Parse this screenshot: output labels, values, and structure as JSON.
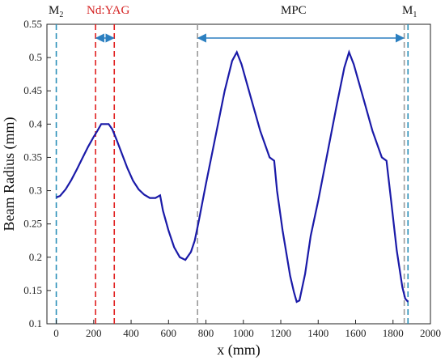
{
  "chart_data": {
    "type": "line",
    "title": "",
    "xlabel": "x (mm)",
    "ylabel": "Beam Radius (mm)",
    "xlim": [
      -50,
      2000
    ],
    "ylim": [
      0.1,
      0.55
    ],
    "x_ticks": [
      "0",
      "200",
      "400",
      "600",
      "800",
      "1000",
      "1200",
      "1400",
      "1600",
      "1800",
      "2000"
    ],
    "y_ticks": [
      "0.1",
      "0.15",
      "0.2",
      "0.25",
      "0.3",
      "0.35",
      "0.4",
      "0.45",
      "0.5",
      "0.55"
    ],
    "grid": false,
    "series": [
      {
        "color": "#1a1aa8",
        "x": [
          0,
          20,
          50,
          80,
          110,
          140,
          170,
          200,
          220,
          240,
          280,
          300,
          320,
          350,
          380,
          410,
          440,
          470,
          500,
          530,
          555,
          570,
          600,
          630,
          660,
          690,
          720,
          740,
          760,
          800,
          850,
          900,
          940,
          965,
          990,
          1040,
          1090,
          1140,
          1165,
          1180,
          1210,
          1250,
          1270,
          1285,
          1300,
          1330,
          1360,
          1400,
          1450,
          1500,
          1540,
          1565,
          1590,
          1640,
          1690,
          1740,
          1765,
          1790,
          1820,
          1850,
          1865,
          1880
        ],
        "y": [
          0.29,
          0.292,
          0.302,
          0.316,
          0.332,
          0.349,
          0.366,
          0.381,
          0.39,
          0.4,
          0.4,
          0.392,
          0.378,
          0.356,
          0.334,
          0.315,
          0.302,
          0.294,
          0.289,
          0.289,
          0.293,
          0.27,
          0.24,
          0.215,
          0.2,
          0.196,
          0.208,
          0.225,
          0.252,
          0.31,
          0.38,
          0.45,
          0.495,
          0.508,
          0.49,
          0.44,
          0.39,
          0.35,
          0.345,
          0.3,
          0.24,
          0.172,
          0.148,
          0.133,
          0.135,
          0.175,
          0.232,
          0.285,
          0.357,
          0.43,
          0.485,
          0.508,
          0.49,
          0.44,
          0.39,
          0.35,
          0.345,
          0.285,
          0.21,
          0.155,
          0.138,
          0.133
        ]
      }
    ],
    "vlines": [
      {
        "x": 0,
        "color": "#2a8fb8"
      },
      {
        "x": 210,
        "color": "#e02020"
      },
      {
        "x": 310,
        "color": "#e02020"
      },
      {
        "x": 755,
        "color": "#999999"
      },
      {
        "x": 1860,
        "color": "#999999"
      },
      {
        "x": 1880,
        "color": "#2a8fb8"
      }
    ],
    "arrows": [
      {
        "x1": 210,
        "x2": 310,
        "color": "#2b7fc0"
      },
      {
        "x1": 755,
        "x2": 1860,
        "color": "#2b7fc0"
      }
    ],
    "annotations": [
      {
        "name": "m2-label",
        "text": "M",
        "sub": "2",
        "color": "#111111"
      },
      {
        "name": "ndyag-label",
        "text": "Nd:YAG",
        "sub": "",
        "color": "#d42020"
      },
      {
        "name": "mpc-label",
        "text": "MPC",
        "sub": "",
        "color": "#111111"
      },
      {
        "name": "m1-label",
        "text": "M",
        "sub": "1",
        "color": "#111111"
      }
    ]
  }
}
